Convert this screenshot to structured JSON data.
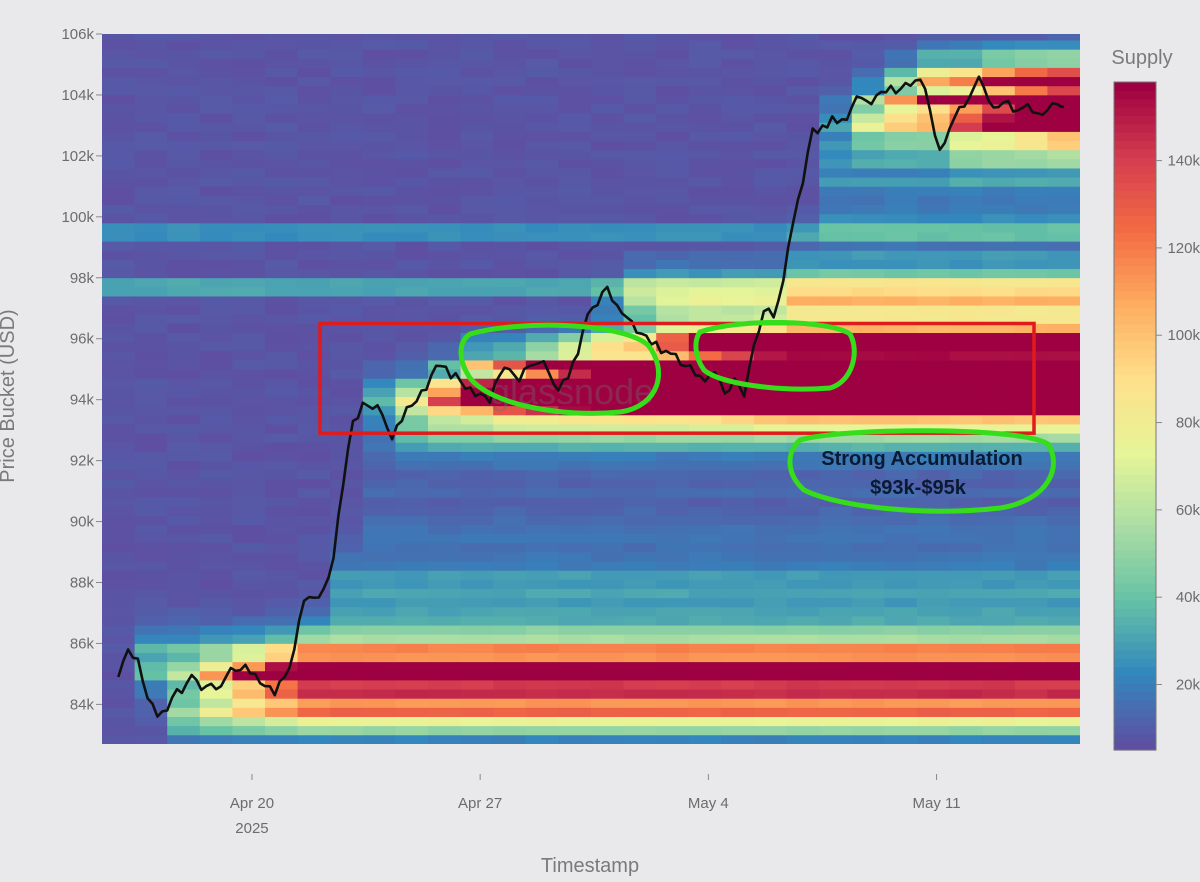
{
  "chart_data": {
    "type": "heatmap",
    "title": "",
    "xlabel": "Timestamp",
    "ylabel": "Price Bucket (USD)",
    "colorbar_title": "Supply",
    "colorbar_ticks": [
      "20k",
      "40k",
      "60k",
      "80k",
      "100k",
      "120k",
      "140k"
    ],
    "colorbar_range": [
      5000,
      158000
    ],
    "colors": [
      "#5e4fa2",
      "#3288bd",
      "#66c2a5",
      "#abdda4",
      "#e6f598",
      "#fee08b",
      "#fdae61",
      "#f46d43",
      "#d53e4f",
      "#9e0142"
    ],
    "x_ticks": [
      {
        "label": "Apr 20",
        "sublabel": "2025",
        "day": 20
      },
      {
        "label": "Apr 27",
        "sublabel": "",
        "day": 27
      },
      {
        "label": "May 4",
        "sublabel": "",
        "day": 34
      },
      {
        "label": "May 11",
        "sublabel": "",
        "day": 41
      }
    ],
    "x_range_days": [
      15.4,
      45.4
    ],
    "y_ticks": [
      "84k",
      "86k",
      "88k",
      "90k",
      "92k",
      "94k",
      "96k",
      "98k",
      "100k",
      "102k",
      "104k",
      "106k"
    ],
    "y_tick_values": [
      84000,
      86000,
      88000,
      90000,
      92000,
      94000,
      96000,
      98000,
      100000,
      102000,
      104000,
      106000
    ],
    "y_range": [
      82700,
      106000
    ],
    "price_series": {
      "name": "",
      "color": "#111111",
      "day": [
        15.9,
        16.2,
        16.5,
        16.8,
        17.1,
        17.4,
        17.7,
        18.0,
        18.3,
        18.6,
        18.9,
        19.2,
        19.5,
        19.8,
        20.1,
        20.4,
        20.7,
        21.0,
        21.3,
        21.6,
        21.9,
        22.2,
        22.5,
        22.8,
        23.1,
        23.4,
        23.7,
        24.0,
        24.3,
        24.6,
        24.9,
        25.2,
        25.5,
        25.8,
        26.1,
        26.4,
        26.7,
        27.0,
        27.3,
        27.6,
        27.9,
        28.2,
        28.5,
        28.8,
        29.1,
        29.4,
        29.7,
        30.0,
        30.3,
        30.6,
        30.9,
        31.2,
        31.5,
        31.8,
        32.1,
        32.4,
        32.7,
        33.0,
        33.3,
        33.6,
        33.9,
        34.2,
        34.5,
        34.8,
        35.1,
        35.4,
        35.7,
        36.0,
        36.3,
        36.6,
        36.9,
        37.2,
        37.5,
        37.8,
        38.1,
        38.4,
        38.7,
        39.0,
        39.3,
        39.6,
        39.9,
        40.2,
        40.5,
        40.8,
        41.1,
        41.4,
        41.7,
        42.0,
        42.3,
        42.6,
        42.9,
        43.2,
        43.5,
        43.8,
        44.1,
        44.4,
        44.7,
        44.9
      ],
      "price": [
        84900,
        85800,
        85500,
        84200,
        83600,
        83800,
        84500,
        84700,
        84800,
        84600,
        84500,
        84900,
        85100,
        85300,
        85000,
        84600,
        84300,
        84900,
        85800,
        87400,
        87500,
        87800,
        88800,
        91200,
        93300,
        93900,
        93700,
        93500,
        92700,
        93300,
        93800,
        94300,
        94800,
        95100,
        94700,
        94600,
        94400,
        94200,
        93900,
        94800,
        95000,
        94600,
        95100,
        95200,
        94900,
        94300,
        94700,
        95500,
        96800,
        97100,
        97700,
        97100,
        96700,
        96200,
        96100,
        95900,
        95600,
        95500,
        95100,
        94800,
        94600,
        94900,
        94200,
        94700,
        94100,
        95800,
        96900,
        96700,
        97900,
        99800,
        101100,
        102900,
        103000,
        103300,
        103200,
        103600,
        103900,
        103700,
        104100,
        104300,
        104200,
        104300,
        104500,
        103500,
        102200,
        102900,
        103600,
        103900,
        104600,
        103800,
        103600,
        103800,
        103500,
        103700,
        103400,
        103500,
        103700,
        103600
      ]
    },
    "annotations": {
      "strong_accumulation_line1": "Strong Accumulation",
      "strong_accumulation_line2": "$93k-$95k",
      "red_box_price_range": [
        92900,
        96500
      ],
      "red_box_day_range": [
        22.4,
        49.0
      ],
      "red_box_color": "#e01b1b",
      "green_highlight_color": "#35dd1a"
    },
    "watermark": "glassnode"
  }
}
